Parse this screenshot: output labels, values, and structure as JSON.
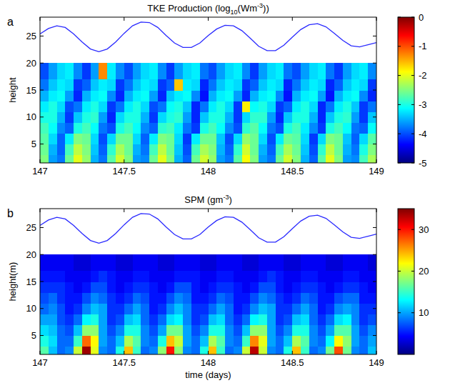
{
  "chart_data": [
    {
      "type": "heatmap",
      "letter": "a",
      "title": "TKE Production (log10(Wm-3))",
      "ylabel": "height",
      "xlim": [
        147,
        149
      ],
      "ylim": [
        1.5,
        28.5
      ],
      "xticks": [
        147,
        147.5,
        148,
        148.5,
        149
      ],
      "yticks": [
        5,
        10,
        15,
        20,
        25
      ],
      "color_range": [
        -5,
        0
      ],
      "color_ticks": [
        -5,
        -4,
        -3,
        -2,
        -1,
        0
      ],
      "x_edges": [
        147,
        147.05,
        147.1,
        147.15,
        147.2,
        147.25,
        147.3,
        147.35,
        147.4,
        147.45,
        147.5,
        147.55,
        147.6,
        147.65,
        147.7,
        147.75,
        147.8,
        147.85,
        147.9,
        147.95,
        148,
        148.05,
        148.1,
        148.15,
        148.2,
        148.25,
        148.3,
        148.35,
        148.4,
        148.45,
        148.5,
        148.55,
        148.6,
        148.65,
        148.7,
        148.75,
        148.8,
        148.85,
        148.9,
        148.95,
        149
      ],
      "y_edges": [
        1.5,
        3,
        5,
        7,
        9,
        11,
        13,
        15,
        17,
        20
      ],
      "cells": [
        [
          -2.5,
          -3.6,
          -3.8,
          -2.6,
          -2.0,
          -2.4,
          -3.5,
          -3.8,
          -2.7,
          -2.1,
          -2.5,
          -3.6,
          -3.7,
          -2.6,
          -2.0,
          -2.5,
          -3.5,
          -3.9,
          -2.6,
          -2.1,
          -2.4,
          -3.6,
          -3.8,
          -2.7,
          -1.9,
          -2.5,
          -3.6,
          -3.8,
          -2.6,
          -2.1,
          -2.5,
          -3.5,
          -3.9,
          -2.7,
          -2.0,
          -2.5,
          -3.6,
          -3.7,
          -2.8,
          -2.3
        ],
        [
          -2.6,
          -3.5,
          -3.9,
          -2.8,
          -2.2,
          -2.5,
          -3.4,
          -3.9,
          -2.9,
          -2.3,
          -2.6,
          -3.5,
          -3.8,
          -2.8,
          -2.2,
          -2.6,
          -3.4,
          -4.0,
          -2.8,
          -2.3,
          -2.5,
          -3.5,
          -3.9,
          -2.9,
          -2.1,
          -2.6,
          -3.5,
          -3.9,
          -2.8,
          -2.3,
          -2.6,
          -3.4,
          -4.0,
          -2.9,
          -2.2,
          -2.6,
          -3.5,
          -3.8,
          -3.0,
          -2.5
        ],
        [
          -2.7,
          -3.3,
          -3.9,
          -3.2,
          -2.5,
          -2.6,
          -3.3,
          -4.0,
          -3.3,
          -2.6,
          -2.6,
          -3.3,
          -3.9,
          -3.2,
          -2.5,
          -2.6,
          -3.3,
          -4.1,
          -3.2,
          -2.6,
          -2.6,
          -3.4,
          -4.0,
          -3.3,
          -2.4,
          -2.6,
          -3.3,
          -4.0,
          -3.2,
          -2.6,
          -2.7,
          -3.3,
          -4.1,
          -3.3,
          -2.5,
          -2.6,
          -3.4,
          -3.9,
          -3.3,
          -2.7
        ],
        [
          -2.8,
          -3.1,
          -3.7,
          -3.9,
          -3.0,
          -2.8,
          -3.1,
          -3.8,
          -4.0,
          -3.0,
          -2.8,
          -3.1,
          -3.7,
          -3.9,
          -2.9,
          -2.8,
          -3.2,
          -3.8,
          -4.1,
          -3.0,
          -2.8,
          -3.1,
          -3.7,
          -4.0,
          -2.9,
          -2.7,
          -3.1,
          -3.8,
          -4.0,
          -3.0,
          -2.8,
          -3.2,
          -3.7,
          -4.1,
          -3.0,
          -2.8,
          -3.1,
          -3.8,
          -3.9,
          -3.1
        ],
        [
          -3.0,
          -3.0,
          -3.5,
          -4.1,
          -3.4,
          -3.0,
          -2.9,
          -3.6,
          -4.2,
          -3.3,
          -3.0,
          -3.0,
          -3.5,
          -4.1,
          -3.3,
          -3.0,
          -2.9,
          -3.6,
          -4.2,
          -3.4,
          -3.0,
          -3.0,
          -3.5,
          -4.1,
          -3.3,
          -2.9,
          -2.9,
          -3.6,
          -4.2,
          -3.4,
          -3.0,
          -3.0,
          -3.5,
          -4.2,
          -3.4,
          -3.0,
          -2.9,
          -3.6,
          -4.1,
          -3.4
        ],
        [
          -3.2,
          -3.0,
          -3.3,
          -4.0,
          -3.8,
          -3.2,
          -3.0,
          -3.3,
          -4.1,
          -3.8,
          -3.2,
          -3.0,
          -3.3,
          -4.0,
          -3.8,
          -3.1,
          -3.0,
          -3.4,
          -4.2,
          -3.8,
          -3.2,
          -3.0,
          -3.3,
          -4.1,
          -1.8,
          -3.1,
          -3.0,
          -3.3,
          -4.1,
          -3.9,
          -3.2,
          -3.0,
          -3.3,
          -4.2,
          -3.8,
          -3.2,
          -3.0,
          -3.4,
          -4.1,
          -3.8
        ],
        [
          -3.5,
          -3.2,
          -3.1,
          -3.6,
          -4.2,
          -3.5,
          -3.2,
          -3.1,
          -3.7,
          -4.2,
          -3.5,
          -3.2,
          -3.1,
          -3.6,
          -4.2,
          -3.4,
          -3.2,
          -3.1,
          -3.7,
          -4.3,
          -3.5,
          -3.2,
          -3.1,
          -3.6,
          -4.2,
          -3.5,
          -3.2,
          -3.1,
          -3.7,
          -4.3,
          -3.5,
          -3.2,
          -3.1,
          -3.6,
          -4.3,
          -3.5,
          -3.2,
          -3.1,
          -3.7,
          -4.2
        ],
        [
          -3.8,
          -3.4,
          -3.2,
          -3.3,
          -4.1,
          -3.9,
          -3.4,
          -3.2,
          -3.3,
          -4.1,
          -3.8,
          -3.4,
          -3.2,
          -3.3,
          -4.1,
          -3.9,
          -1.6,
          -3.2,
          -3.3,
          -4.2,
          -3.8,
          -3.4,
          -3.2,
          -3.3,
          -4.1,
          -3.9,
          -3.4,
          -3.2,
          -3.3,
          -4.2,
          -3.8,
          -3.4,
          -3.2,
          -3.3,
          -4.2,
          -3.9,
          -3.4,
          -3.2,
          -3.3,
          -4.1
        ],
        [
          -4.0,
          -3.6,
          -3.3,
          -3.2,
          -3.7,
          -4.1,
          -3.6,
          -1.3,
          -3.2,
          -3.7,
          -4.0,
          -3.6,
          -3.3,
          -3.2,
          -3.7,
          -4.1,
          -3.6,
          -3.3,
          -3.2,
          -3.8,
          -4.0,
          -3.6,
          -3.3,
          -3.2,
          -3.7,
          -4.1,
          -3.6,
          -3.3,
          -3.2,
          -3.8,
          -4.0,
          -3.6,
          -3.3,
          -3.2,
          -3.8,
          -4.1,
          -3.6,
          -3.3,
          -3.2,
          -3.7
        ]
      ],
      "tide": {
        "color": "#2a2aff",
        "x": [
          147,
          147.05,
          147.1,
          147.15,
          147.2,
          147.25,
          147.3,
          147.35,
          147.4,
          147.45,
          147.5,
          147.55,
          147.6,
          147.65,
          147.7,
          147.75,
          147.8,
          147.85,
          147.9,
          147.95,
          148,
          148.05,
          148.1,
          148.15,
          148.2,
          148.25,
          148.3,
          148.35,
          148.4,
          148.45,
          148.5,
          148.55,
          148.6,
          148.65,
          148.7,
          148.75,
          148.8,
          148.85,
          148.9,
          148.95,
          149
        ],
        "values": [
          25.4,
          26.4,
          26.9,
          26.6,
          25.4,
          23.9,
          22.6,
          22.1,
          22.6,
          23.9,
          25.5,
          26.9,
          27.6,
          27.5,
          26.6,
          25.1,
          23.7,
          22.9,
          22.9,
          23.7,
          25.1,
          26.3,
          27.0,
          26.9,
          26.0,
          24.6,
          23.1,
          22.3,
          22.3,
          23.3,
          24.8,
          26.2,
          27.1,
          27.3,
          26.7,
          25.5,
          24.2,
          23.2,
          23.0,
          23.4,
          23.8
        ]
      }
    },
    {
      "type": "heatmap",
      "letter": "b",
      "title": "SPM (gm-3)",
      "ylabel": "height(m)",
      "xlabel": "time (days)",
      "xlim": [
        147,
        149
      ],
      "ylim": [
        1.5,
        28.5
      ],
      "xticks": [
        147,
        147.5,
        148,
        148.5,
        149
      ],
      "yticks": [
        5,
        10,
        15,
        20,
        25
      ],
      "color_range": [
        0,
        35
      ],
      "color_ticks": [
        10,
        20,
        30
      ],
      "x_edges": [
        147,
        147.05,
        147.1,
        147.15,
        147.2,
        147.25,
        147.3,
        147.35,
        147.4,
        147.45,
        147.5,
        147.55,
        147.6,
        147.65,
        147.7,
        147.75,
        147.8,
        147.85,
        147.9,
        147.95,
        148,
        148.05,
        148.1,
        148.15,
        148.2,
        148.25,
        148.3,
        148.35,
        148.4,
        148.45,
        148.5,
        148.55,
        148.6,
        148.65,
        148.7,
        148.75,
        148.8,
        148.85,
        148.9,
        148.95,
        149
      ],
      "y_edges": [
        1.5,
        3,
        5,
        7,
        9,
        11,
        13,
        15,
        17,
        20
      ],
      "cells": [
        [
          16,
          11,
          8,
          9,
          20,
          34,
          21,
          9,
          8,
          14,
          24,
          15,
          8,
          9,
          18,
          30,
          18,
          9,
          8,
          14,
          24,
          15,
          8,
          9,
          20,
          33,
          20,
          9,
          8,
          14,
          24,
          15,
          8,
          9,
          17,
          28,
          17,
          9,
          8,
          11
        ],
        [
          14,
          12,
          8,
          8,
          15,
          27,
          22,
          10,
          8,
          11,
          19,
          16,
          9,
          8,
          14,
          24,
          20,
          10,
          8,
          11,
          19,
          16,
          9,
          8,
          15,
          26,
          21,
          10,
          8,
          11,
          19,
          16,
          9,
          8,
          13,
          22,
          18,
          10,
          8,
          10
        ],
        [
          12,
          11,
          8,
          7,
          11,
          18,
          18,
          10,
          7,
          9,
          14,
          14,
          9,
          7,
          10,
          17,
          17,
          10,
          7,
          9,
          14,
          14,
          9,
          7,
          11,
          18,
          18,
          10,
          7,
          9,
          14,
          14,
          9,
          7,
          10,
          16,
          16,
          10,
          7,
          9
        ],
        [
          10,
          10,
          7,
          6,
          8,
          13,
          14,
          10,
          6,
          7,
          11,
          12,
          8,
          6,
          8,
          12,
          13,
          9,
          6,
          7,
          11,
          12,
          8,
          6,
          8,
          13,
          14,
          10,
          6,
          7,
          11,
          12,
          8,
          6,
          8,
          12,
          13,
          9,
          6,
          7
        ],
        [
          8,
          9,
          7,
          5,
          6,
          9,
          11,
          10,
          6,
          6,
          8,
          10,
          8,
          5,
          6,
          9,
          11,
          9,
          6,
          6,
          8,
          10,
          8,
          5,
          6,
          9,
          11,
          10,
          6,
          6,
          8,
          10,
          8,
          5,
          6,
          9,
          10,
          9,
          6,
          6
        ],
        [
          7,
          8,
          6,
          5,
          5,
          7,
          9,
          8,
          6,
          5,
          6,
          8,
          7,
          5,
          5,
          7,
          9,
          8,
          5,
          5,
          6,
          8,
          7,
          5,
          5,
          7,
          9,
          8,
          6,
          5,
          6,
          8,
          7,
          5,
          5,
          7,
          8,
          8,
          5,
          5
        ],
        [
          6,
          6,
          6,
          5,
          4,
          5,
          7,
          7,
          5,
          4,
          5,
          6,
          6,
          5,
          4,
          5,
          7,
          7,
          5,
          4,
          5,
          6,
          6,
          5,
          4,
          5,
          7,
          7,
          5,
          4,
          5,
          6,
          6,
          5,
          4,
          5,
          6,
          6,
          5,
          4
        ],
        [
          5,
          5,
          5,
          4,
          4,
          4,
          5,
          6,
          5,
          4,
          4,
          5,
          5,
          4,
          4,
          4,
          5,
          5,
          5,
          4,
          4,
          5,
          5,
          4,
          4,
          4,
          5,
          6,
          5,
          4,
          4,
          5,
          5,
          4,
          4,
          4,
          5,
          5,
          4,
          4
        ],
        [
          4,
          4,
          4,
          4,
          3,
          3,
          4,
          4,
          4,
          3,
          3,
          4,
          4,
          4,
          3,
          3,
          4,
          4,
          4,
          3,
          3,
          4,
          4,
          4,
          3,
          3,
          4,
          4,
          4,
          3,
          3,
          4,
          4,
          4,
          3,
          3,
          4,
          4,
          4,
          3
        ]
      ],
      "tide": {
        "color": "#2a2aff",
        "x": [
          147,
          147.05,
          147.1,
          147.15,
          147.2,
          147.25,
          147.3,
          147.35,
          147.4,
          147.45,
          147.5,
          147.55,
          147.6,
          147.65,
          147.7,
          147.75,
          147.8,
          147.85,
          147.9,
          147.95,
          148,
          148.05,
          148.1,
          148.15,
          148.2,
          148.25,
          148.3,
          148.35,
          148.4,
          148.45,
          148.5,
          148.55,
          148.6,
          148.65,
          148.7,
          148.75,
          148.8,
          148.85,
          148.9,
          148.95,
          149
        ],
        "values": [
          25.4,
          26.4,
          26.9,
          26.6,
          25.4,
          23.9,
          22.6,
          22.1,
          22.6,
          23.9,
          25.5,
          26.9,
          27.6,
          27.5,
          26.6,
          25.1,
          23.7,
          22.9,
          22.9,
          23.7,
          25.1,
          26.3,
          27.0,
          26.9,
          26.0,
          24.6,
          23.1,
          22.3,
          22.3,
          23.3,
          24.8,
          26.2,
          27.1,
          27.3,
          26.7,
          25.5,
          24.2,
          23.2,
          23.0,
          23.4,
          23.8
        ]
      }
    }
  ]
}
